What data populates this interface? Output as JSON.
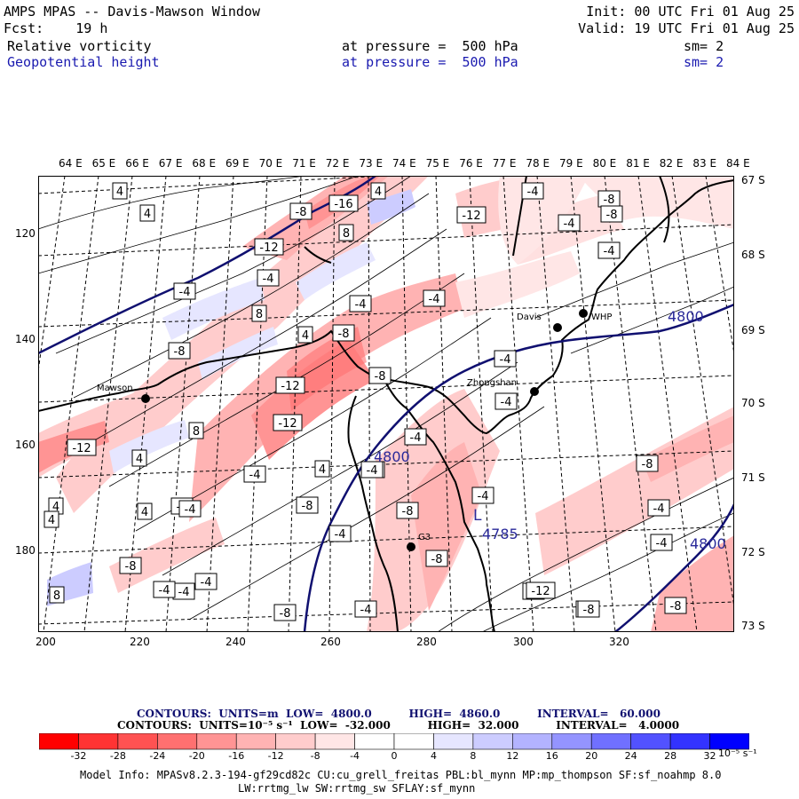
{
  "header": {
    "title": "AMPS MPAS -- Davis-Mawson Window",
    "init": "Init: 00 UTC Fri 01 Aug 25",
    "forecast": "Fcst:    19 h",
    "valid": "Valid: 19 UTC Fri 01 Aug 25",
    "field1": {
      "name": "Relative vorticity",
      "level": "at pressure =  500 hPa",
      "smooth": "sm= 2"
    },
    "field2": {
      "name": "Geopotential height",
      "level": "at pressure =  500 hPa",
      "smooth": "sm= 2"
    }
  },
  "map": {
    "top_labels": [
      "64 E",
      "65 E",
      "66 E",
      "67 E",
      "68 E",
      "69 E",
      "70 E",
      "71 E",
      "72 E",
      "73 E",
      "74 E",
      "75 E",
      "76 E",
      "77 E",
      "78 E",
      "79 E",
      "80 E",
      "81 E",
      "82 E",
      "83 E",
      "84 E"
    ],
    "right_labels": [
      "67 S",
      "68 S",
      "69 S",
      "70 S",
      "71 S",
      "72 S",
      "73 S"
    ],
    "bottom_labels": [
      "200",
      "220",
      "240",
      "260",
      "280",
      "300",
      "320"
    ],
    "left_labels": [
      "120",
      "140",
      "160",
      "180"
    ],
    "stations": [
      {
        "name": "Mawson"
      },
      {
        "name": "Davis"
      },
      {
        "name": "WHP"
      },
      {
        "name": "Zhongshan"
      },
      {
        "name": "G3"
      }
    ],
    "height_labels": [
      "4800",
      "4800",
      "4800",
      "4785"
    ],
    "low_marker": "L",
    "vort_labels": [
      "4",
      "4",
      "-8",
      "-16",
      "4",
      "8",
      "-12",
      "-12",
      "-8",
      "-4",
      "8",
      "-4",
      "-4",
      "-4",
      "8",
      "-4",
      "-8",
      "4",
      "-8",
      "-8",
      "-12",
      "-4",
      "-12",
      "-4",
      "-12",
      "8",
      "4",
      "-4",
      "4",
      "-4",
      "-8",
      "4",
      "4",
      "-4",
      "-8",
      "-4",
      "4",
      "-8",
      "-4",
      "-8",
      "-4",
      "-8",
      "-8",
      "-8",
      "-8",
      "-4",
      "-4",
      "-4",
      "-4",
      "-4",
      "-4",
      "-8",
      "-4",
      "8",
      "-8",
      "-8",
      "-12",
      "-8",
      "4",
      "-4",
      "-4"
    ]
  },
  "colorbar": {
    "contours_line1": "CONTOURS:  UNITS=m  LOW=  4800.0          HIGH=  4860.0          INTERVAL=   60.000",
    "contours_line2": "CONTOURS:  UNITS=10⁻⁵ s⁻¹  LOW=  -32.000          HIGH=  32.000          INTERVAL=   4.0000",
    "ticks": [
      "-32",
      "-28",
      "-24",
      "-20",
      "-16",
      "-12",
      "-8",
      "-4",
      "0",
      "4",
      "8",
      "12",
      "16",
      "20",
      "24",
      "28",
      "32"
    ],
    "units": "10⁻⁵ s⁻¹",
    "colors": [
      "#ff0000",
      "#ff3333",
      "#ff5252",
      "#ff7070",
      "#ff9494",
      "#ffb3b3",
      "#ffcccc",
      "#ffe6e6",
      "#ffffff",
      "#ffffff",
      "#e6e6ff",
      "#ccccff",
      "#b3b3ff",
      "#9494ff",
      "#7070ff",
      "#5252ff",
      "#3333ff",
      "#0000ff"
    ]
  },
  "model_info": {
    "line1": "Model Info: MPASv8.2.3-194-gf29cd82c CU:cu_grell_freitas PBL:bl_mynn MP:mp_thompson SF:sf_noahmp 8.0",
    "line2": "LW:rrtmg_lw SW:rrtmg_sw SFLAY:sf_mynn"
  }
}
